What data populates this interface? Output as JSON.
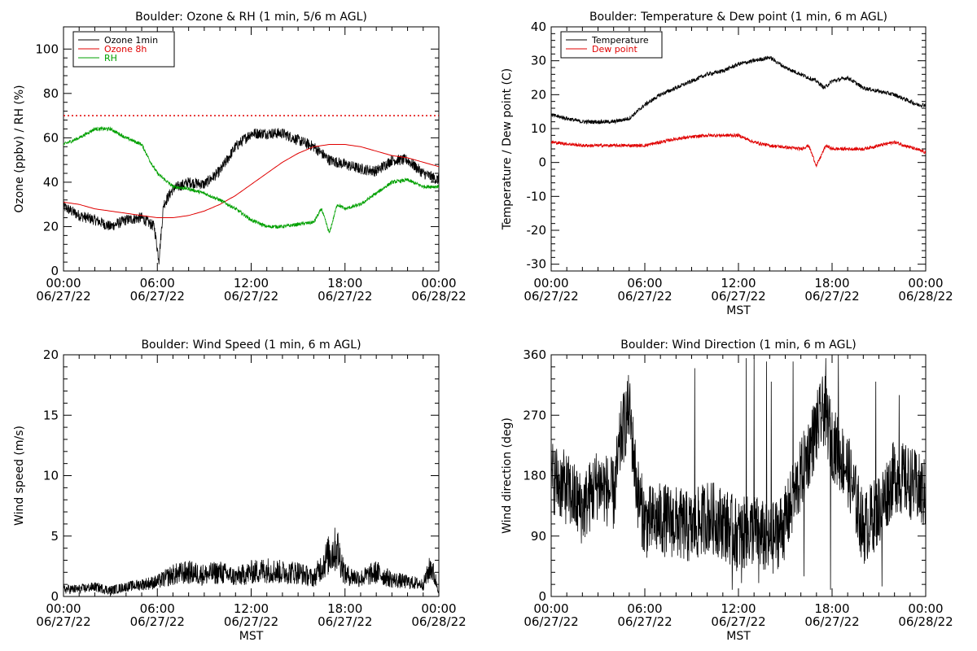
{
  "chart_data": [
    {
      "type": "line",
      "title": "Boulder: Ozone & RH (1 min, 5/6 m AGL)",
      "ylabel": "Ozone (ppbv) / RH (%)",
      "xlabel": "",
      "xlim": [
        0,
        24
      ],
      "ylim": [
        0,
        110
      ],
      "yticks": [
        0,
        20,
        40,
        60,
        80,
        100
      ],
      "xticks": [
        0,
        6,
        12,
        18,
        24
      ],
      "xtick_labels": [
        [
          "00:00",
          "06/27/22"
        ],
        [
          "06:00",
          "06/27/22"
        ],
        [
          "12:00",
          "06/27/22"
        ],
        [
          "18:00",
          "06/27/22"
        ],
        [
          "00:00",
          "06/28/22"
        ]
      ],
      "legend_position": "top-left",
      "reference_line": {
        "y": 70,
        "color": "#e00000",
        "style": "dotted"
      },
      "series": [
        {
          "name": "Ozone 1min",
          "color": "#000000",
          "x": [
            0,
            1,
            2,
            3,
            4,
            5,
            5.8,
            6.1,
            6.4,
            7,
            8,
            9,
            10,
            11,
            12,
            13,
            14,
            15,
            16,
            17,
            18,
            19,
            20,
            21,
            22,
            23,
            24
          ],
          "y": [
            29,
            25,
            23,
            20,
            23,
            24,
            20,
            5,
            30,
            37,
            40,
            39,
            45,
            56,
            62,
            62,
            62,
            59,
            56,
            50,
            48,
            46,
            45,
            50,
            50,
            44,
            41
          ]
        },
        {
          "name": "Ozone 8h",
          "color": "#e00000",
          "x": [
            0,
            1,
            2,
            3,
            4,
            5,
            6,
            7,
            8,
            9,
            10,
            11,
            12,
            13,
            14,
            15,
            16,
            17,
            18,
            19,
            20,
            21,
            22,
            23,
            24
          ],
          "y": [
            31,
            30,
            28,
            27,
            26,
            25,
            24,
            24,
            25,
            27,
            30,
            34,
            39,
            44,
            49,
            53,
            56,
            57,
            57,
            56,
            54,
            52,
            51,
            49,
            47
          ]
        },
        {
          "name": "RH",
          "color": "#00a000",
          "x": [
            0,
            1,
            2,
            3,
            4,
            5,
            5.5,
            6,
            7,
            8,
            9,
            10,
            11,
            12,
            13,
            14,
            15,
            16,
            16.5,
            17,
            17.5,
            18,
            19,
            20,
            21,
            22,
            23,
            24
          ],
          "y": [
            57,
            60,
            64,
            64,
            60,
            57,
            50,
            44,
            38,
            37,
            35,
            32,
            28,
            23,
            20,
            20,
            21,
            22,
            28,
            17,
            30,
            28,
            30,
            35,
            40,
            41,
            38,
            38
          ]
        }
      ]
    },
    {
      "type": "line",
      "title": "Boulder: Temperature & Dew point (1 min, 6 m AGL)",
      "ylabel": "Temperature / Dew point (C)",
      "xlabel": "MST",
      "xlim": [
        0,
        24
      ],
      "ylim": [
        -32,
        40
      ],
      "yticks": [
        -30,
        -20,
        -10,
        0,
        10,
        20,
        30,
        40
      ],
      "xticks": [
        0,
        6,
        12,
        18,
        24
      ],
      "xtick_labels": [
        [
          "00:00",
          "06/27/22"
        ],
        [
          "06:00",
          "06/27/22"
        ],
        [
          "12:00",
          "06/27/22"
        ],
        [
          "18:00",
          "06/27/22"
        ],
        [
          "00:00",
          "06/28/22"
        ]
      ],
      "legend_position": "top-left",
      "series": [
        {
          "name": "Temperature",
          "color": "#000000",
          "x": [
            0,
            1,
            2,
            3,
            4,
            5,
            6,
            7,
            8,
            9,
            10,
            11,
            12,
            13,
            14,
            15,
            16,
            17,
            17.5,
            18,
            19,
            20,
            21,
            22,
            23,
            23.5,
            24
          ],
          "y": [
            14,
            13,
            12,
            12,
            12,
            13,
            17,
            20,
            22,
            24,
            26,
            27,
            29,
            30,
            31,
            28,
            26,
            24,
            22,
            24,
            25,
            22,
            21,
            20,
            18,
            17,
            17
          ]
        },
        {
          "name": "Dew point",
          "color": "#e00000",
          "x": [
            0,
            2,
            4,
            6,
            8,
            10,
            12,
            13,
            14,
            16,
            16.5,
            17,
            17.3,
            17.6,
            18,
            20,
            22,
            24
          ],
          "y": [
            6,
            5,
            5,
            5,
            7,
            8,
            8,
            6,
            5,
            4,
            5,
            -1,
            2,
            5,
            4,
            4,
            6,
            3
          ]
        }
      ]
    },
    {
      "type": "line",
      "title": "Boulder: Wind Speed (1 min, 6 m AGL)",
      "ylabel": "Wind speed (m/s)",
      "xlabel": "MST",
      "xlim": [
        0,
        24
      ],
      "ylim": [
        0,
        20
      ],
      "yticks": [
        0,
        5,
        10,
        15,
        20
      ],
      "xticks": [
        0,
        6,
        12,
        18,
        24
      ],
      "xtick_labels": [
        [
          "00:00",
          "06/27/22"
        ],
        [
          "06:00",
          "06/27/22"
        ],
        [
          "12:00",
          "06/27/22"
        ],
        [
          "18:00",
          "06/27/22"
        ],
        [
          "00:00",
          "06/28/22"
        ]
      ],
      "series": [
        {
          "name": "",
          "color": "#000000",
          "x": [
            0,
            1,
            2,
            3,
            4,
            5,
            6,
            7,
            8,
            9,
            10,
            11,
            12,
            13,
            14,
            15,
            16,
            17,
            17.5,
            18,
            19,
            20,
            21,
            22,
            23,
            23.5,
            24
          ],
          "y": [
            0.6,
            0.6,
            0.8,
            0.5,
            0.8,
            1.0,
            1.2,
            1.8,
            2.0,
            1.8,
            2.0,
            1.6,
            2.0,
            2.2,
            2.0,
            2.0,
            1.5,
            3.5,
            4.0,
            1.8,
            1.5,
            2.0,
            1.4,
            1.2,
            1.0,
            2.5,
            0.5
          ]
        }
      ]
    },
    {
      "type": "line",
      "title": "Boulder: Wind Direction (1 min, 6 m AGL)",
      "ylabel": "Wind direction (deg)",
      "xlabel": "MST",
      "xlim": [
        0,
        24
      ],
      "ylim": [
        0,
        360
      ],
      "yticks": [
        0,
        90,
        180,
        270,
        360
      ],
      "xticks": [
        0,
        6,
        12,
        18,
        24
      ],
      "xtick_labels": [
        [
          "00:00",
          "06/27/22"
        ],
        [
          "06:00",
          "06/27/22"
        ],
        [
          "12:00",
          "06/27/22"
        ],
        [
          "18:00",
          "06/27/22"
        ],
        [
          "00:00",
          "06/28/22"
        ]
      ],
      "series": [
        {
          "name": "",
          "color": "#000000",
          "x": [
            0,
            1,
            2,
            3,
            4,
            4.5,
            5,
            5.5,
            6,
            7,
            8,
            9,
            10,
            11,
            12,
            13,
            14,
            15,
            16,
            17,
            17.5,
            18,
            19,
            20,
            21,
            22,
            23,
            24
          ],
          "y": [
            180,
            160,
            130,
            170,
            150,
            240,
            280,
            160,
            110,
            115,
            110,
            100,
            120,
            110,
            90,
            100,
            80,
            110,
            180,
            250,
            280,
            230,
            190,
            100,
            130,
            180,
            170,
            150
          ]
        }
      ]
    }
  ]
}
